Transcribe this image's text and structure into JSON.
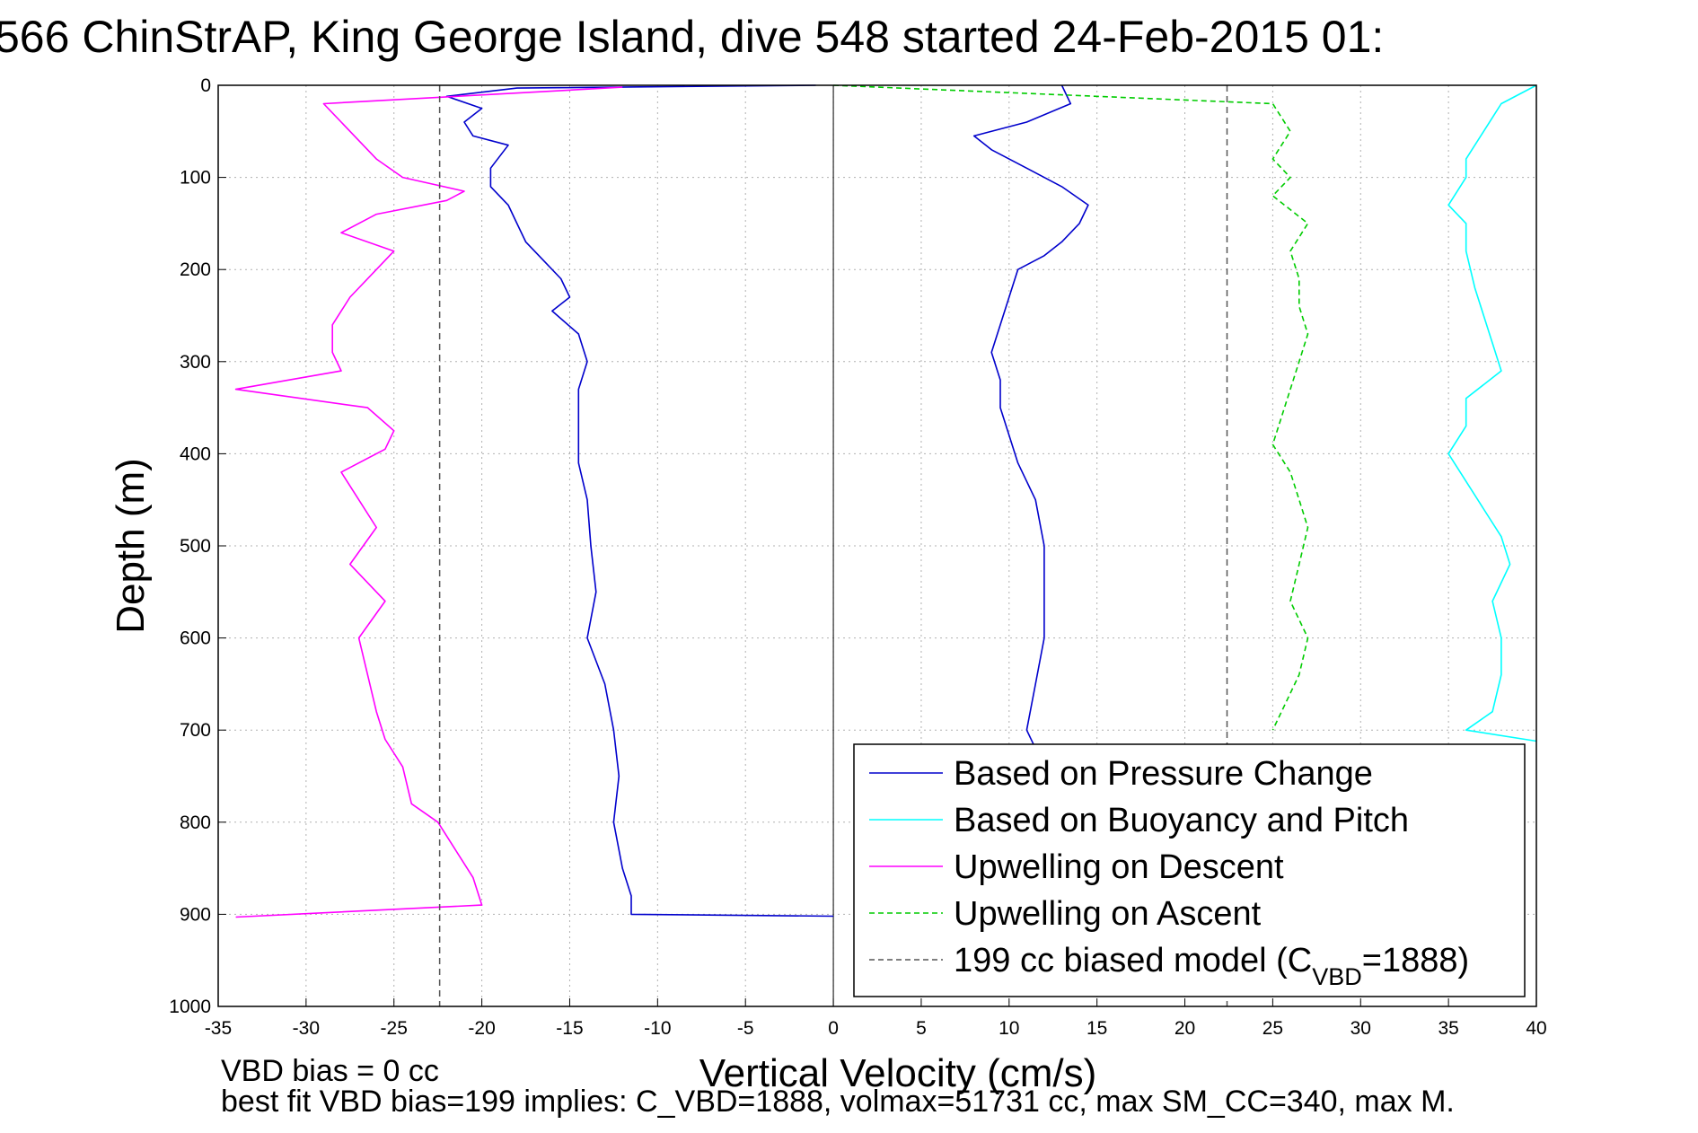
{
  "chart_data": {
    "type": "line",
    "title": "566 ChinStrAP, King George Island, dive 548 started 24-Feb-2015 01:",
    "xlabel": "Vertical Velocity (cm/s)",
    "ylabel": "Depth (m)",
    "xlim": [
      -35,
      40
    ],
    "ylim": [
      1000,
      0
    ],
    "y_reversed": true,
    "grid": true,
    "legend_position": "bottom-right",
    "xticks": [
      "-35",
      "-30",
      "-25",
      "-20",
      "-15",
      "-10",
      "-5",
      "0",
      "5",
      "10",
      "15",
      "20",
      "25",
      "30",
      "35",
      "40"
    ],
    "yticks": [
      "0",
      "100",
      "200",
      "300",
      "400",
      "500",
      "600",
      "700",
      "800",
      "900",
      "1000"
    ],
    "series": [
      {
        "name": "Based on Pressure Change",
        "color": "#0000cc",
        "style": "solid",
        "points": [
          [
            -1,
            0
          ],
          [
            -18,
            3
          ],
          [
            -22,
            12
          ],
          [
            -20,
            25
          ],
          [
            -21,
            40
          ],
          [
            -20.5,
            55
          ],
          [
            -18.5,
            65
          ],
          [
            -19.5,
            90
          ],
          [
            -19.5,
            110
          ],
          [
            -18.5,
            130
          ],
          [
            -18,
            150
          ],
          [
            -17.5,
            170
          ],
          [
            -16.5,
            190
          ],
          [
            -15.5,
            210
          ],
          [
            -15,
            230
          ],
          [
            -16,
            245
          ],
          [
            -14.5,
            270
          ],
          [
            -14,
            300
          ],
          [
            -14.5,
            330
          ],
          [
            -14.5,
            360
          ],
          [
            -14.5,
            390
          ],
          [
            -14.5,
            410
          ],
          [
            -14,
            450
          ],
          [
            -13.8,
            500
          ],
          [
            -13.5,
            550
          ],
          [
            -14,
            600
          ],
          [
            -13,
            650
          ],
          [
            -12.5,
            700
          ],
          [
            -12.2,
            750
          ],
          [
            -12.5,
            800
          ],
          [
            -12,
            850
          ],
          [
            -11.5,
            880
          ],
          [
            -11.5,
            900
          ],
          [
            0,
            902
          ]
        ]
      },
      {
        "name": "Based on Pressure Change",
        "color": "#0000cc",
        "style": "solid",
        "points": [
          [
            13,
            0
          ],
          [
            13.5,
            20
          ],
          [
            11,
            40
          ],
          [
            8,
            55
          ],
          [
            9,
            70
          ],
          [
            11,
            90
          ],
          [
            13,
            110
          ],
          [
            14.5,
            130
          ],
          [
            14,
            150
          ],
          [
            13,
            170
          ],
          [
            12,
            185
          ],
          [
            10.5,
            200
          ],
          [
            10,
            230
          ],
          [
            9.5,
            260
          ],
          [
            9,
            290
          ],
          [
            9.5,
            320
          ],
          [
            9.5,
            350
          ],
          [
            10,
            380
          ],
          [
            10.5,
            410
          ],
          [
            11.5,
            450
          ],
          [
            12,
            500
          ],
          [
            12,
            550
          ],
          [
            12,
            600
          ],
          [
            11.5,
            650
          ],
          [
            11,
            700
          ],
          [
            11.5,
            720
          ]
        ]
      },
      {
        "name": "Based on Buoyancy and Pitch",
        "color": "#00ffff",
        "style": "solid",
        "points": [
          [
            40,
            0
          ],
          [
            38,
            20
          ],
          [
            37,
            50
          ],
          [
            36,
            80
          ],
          [
            36,
            100
          ],
          [
            35,
            130
          ],
          [
            36,
            150
          ],
          [
            36,
            180
          ],
          [
            36.5,
            220
          ],
          [
            37,
            250
          ],
          [
            37.5,
            280
          ],
          [
            38,
            310
          ],
          [
            36,
            340
          ],
          [
            36,
            370
          ],
          [
            35,
            400
          ],
          [
            36,
            430
          ],
          [
            37,
            460
          ],
          [
            38,
            490
          ],
          [
            38.5,
            520
          ],
          [
            37.5,
            560
          ],
          [
            38,
            600
          ],
          [
            38,
            640
          ],
          [
            37.5,
            680
          ],
          [
            36,
            700
          ],
          [
            40,
            712
          ]
        ]
      },
      {
        "name": "Upwelling on Descent",
        "color": "#ff00ff",
        "style": "solid",
        "points": [
          [
            -12,
            2
          ],
          [
            -29,
            20
          ],
          [
            -28,
            40
          ],
          [
            -27,
            60
          ],
          [
            -26,
            80
          ],
          [
            -24.5,
            100
          ],
          [
            -21,
            115
          ],
          [
            -22,
            125
          ],
          [
            -26,
            140
          ],
          [
            -28,
            160
          ],
          [
            -25,
            180
          ],
          [
            -26,
            200
          ],
          [
            -27.5,
            230
          ],
          [
            -28.5,
            260
          ],
          [
            -28.5,
            290
          ],
          [
            -28,
            310
          ],
          [
            -34,
            330
          ],
          [
            -26.5,
            350
          ],
          [
            -25,
            375
          ],
          [
            -25.5,
            395
          ],
          [
            -28,
            420
          ],
          [
            -27,
            450
          ],
          [
            -26,
            480
          ],
          [
            -27.5,
            520
          ],
          [
            -25.5,
            560
          ],
          [
            -27,
            600
          ],
          [
            -26.5,
            640
          ],
          [
            -26,
            680
          ],
          [
            -25.5,
            710
          ],
          [
            -24.5,
            740
          ],
          [
            -24,
            780
          ],
          [
            -22.5,
            800
          ],
          [
            -21.5,
            830
          ],
          [
            -20.5,
            860
          ],
          [
            -20,
            890
          ],
          [
            -34,
            903
          ]
        ]
      },
      {
        "name": "Upwelling on Ascent",
        "color": "#00cc00",
        "style": "dashed",
        "points": [
          [
            0,
            0
          ],
          [
            25,
            20
          ],
          [
            26,
            50
          ],
          [
            25,
            80
          ],
          [
            26,
            100
          ],
          [
            25,
            120
          ],
          [
            27,
            150
          ],
          [
            26,
            180
          ],
          [
            26.5,
            210
          ],
          [
            26.5,
            240
          ],
          [
            27,
            270
          ],
          [
            26.5,
            300
          ],
          [
            26,
            330
          ],
          [
            25.5,
            360
          ],
          [
            25,
            390
          ],
          [
            26,
            420
          ],
          [
            26.5,
            450
          ],
          [
            27,
            480
          ],
          [
            26.5,
            520
          ],
          [
            26,
            560
          ],
          [
            27,
            600
          ],
          [
            26.5,
            640
          ],
          [
            25.5,
            680
          ],
          [
            25,
            700
          ]
        ]
      },
      {
        "name": "199 cc biased model (C",
        "name_sub": "VBD",
        "name_suffix": "=1888)",
        "color": "#555555",
        "style": "dashed",
        "points": [
          [
            -22.4,
            0
          ],
          [
            -22.4,
            1000
          ],
          [
            22.4,
            0
          ],
          [
            22.4,
            1000
          ]
        ]
      }
    ],
    "footer": {
      "line1": "VBD bias = 0 cc",
      "line2": "best fit VBD bias=199 implies: C_VBD=1888, volmax=51731 cc, max SM_CC=340, max M."
    }
  }
}
